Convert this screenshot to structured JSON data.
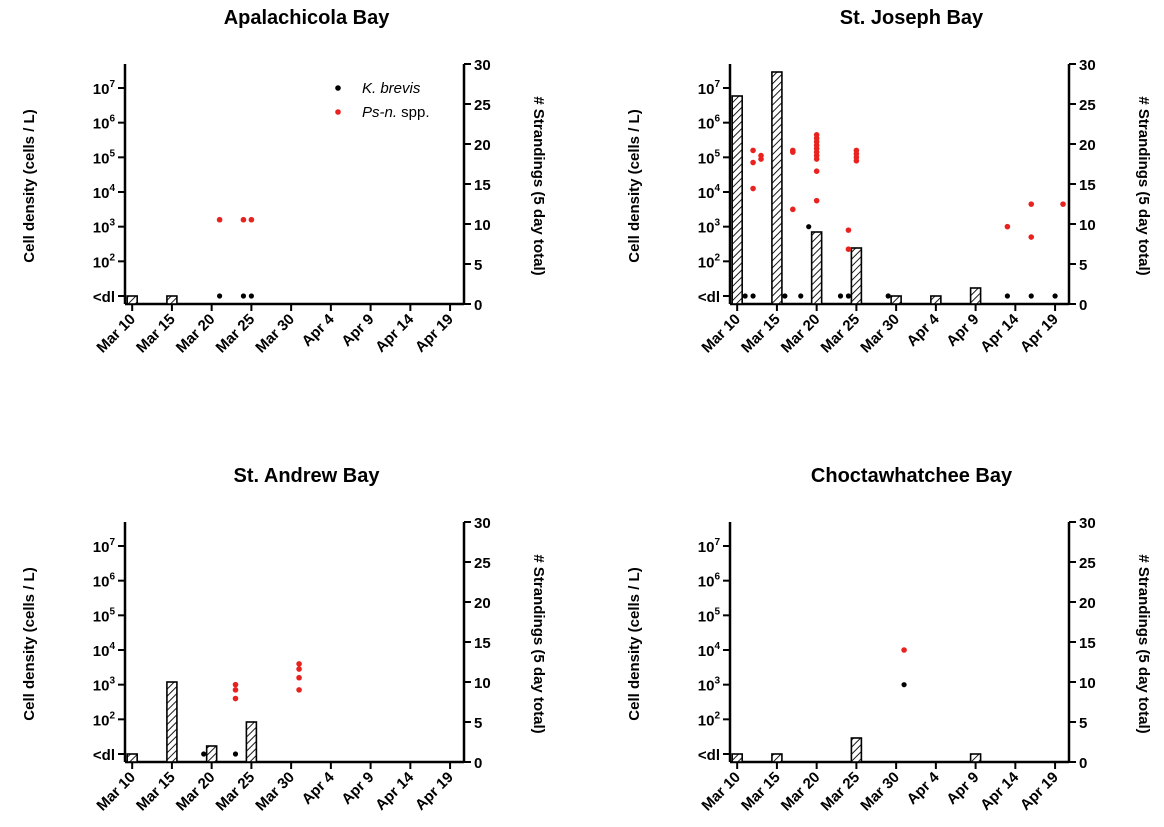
{
  "chart_data": [
    {
      "type": "bar+scatter",
      "title": "Apalachicola Bay",
      "ylabel_left": "Cell density (cells / L)",
      "ylabel_right": "# Strandings (5 day total)",
      "x_ticks": [
        "Mar 10",
        "Mar 15",
        "Mar 20",
        "Mar 25",
        "Mar 30",
        "Apr 4",
        "Apr 9",
        "Apr 14",
        "Apr 19"
      ],
      "y_left_ticks": [
        {
          "label": "<dl",
          "exp": null
        },
        {
          "label": "10",
          "exp": "2"
        },
        {
          "label": "10",
          "exp": "3"
        },
        {
          "label": "10",
          "exp": "4"
        },
        {
          "label": "10",
          "exp": "5"
        },
        {
          "label": "10",
          "exp": "6"
        },
        {
          "label": "10",
          "exp": "7"
        }
      ],
      "y_right_ticks": [
        "0",
        "5",
        "10",
        "15",
        "20",
        "25",
        "30"
      ],
      "y_right_range": [
        0,
        30
      ],
      "legend": {
        "placement": "top-right",
        "entries": [
          {
            "name": "K. brevis",
            "prefix_italic": "K. brevis",
            "suffix": "",
            "color": "#000000"
          },
          {
            "name": "Ps-n. spp.",
            "prefix_italic": "Ps-n.",
            "suffix": " spp.",
            "color": "#e8231f"
          }
        ]
      },
      "bars": [
        {
          "day": 10,
          "value": 1
        },
        {
          "day": 15,
          "value": 1
        }
      ],
      "kbrevis": [
        {
          "day": 21,
          "log": 1
        },
        {
          "day": 24,
          "log": 1
        },
        {
          "day": 25,
          "log": 1
        }
      ],
      "psn": [
        {
          "day": 21,
          "log": 3.2
        },
        {
          "day": 24,
          "log": 3.2
        },
        {
          "day": 25,
          "log": 3.2
        }
      ]
    },
    {
      "type": "bar+scatter",
      "title": "St. Joseph Bay",
      "ylabel_left": "Cell density (cells / L)",
      "ylabel_right": "# Strandings (5 day total)",
      "x_ticks": [
        "Mar 10",
        "Mar 15",
        "Mar 20",
        "Mar 25",
        "Mar 30",
        "Apr 4",
        "Apr 9",
        "Apr 14",
        "Apr 19"
      ],
      "y_left_ticks": [
        {
          "label": "<dl",
          "exp": null
        },
        {
          "label": "10",
          "exp": "2"
        },
        {
          "label": "10",
          "exp": "3"
        },
        {
          "label": "10",
          "exp": "4"
        },
        {
          "label": "10",
          "exp": "5"
        },
        {
          "label": "10",
          "exp": "6"
        },
        {
          "label": "10",
          "exp": "7"
        }
      ],
      "y_right_ticks": [
        "0",
        "5",
        "10",
        "15",
        "20",
        "25",
        "30"
      ],
      "y_right_range": [
        0,
        30
      ],
      "bars": [
        {
          "day": 10,
          "value": 26
        },
        {
          "day": 15,
          "value": 29
        },
        {
          "day": 20,
          "value": 9
        },
        {
          "day": 25,
          "value": 7
        },
        {
          "day": 30,
          "value": 1
        },
        {
          "day": 35,
          "value": 1
        },
        {
          "day": 40,
          "value": 2
        }
      ],
      "kbrevis": [
        {
          "day": 11,
          "log": 1
        },
        {
          "day": 12,
          "log": 1
        },
        {
          "day": 16,
          "log": 1
        },
        {
          "day": 18,
          "log": 1
        },
        {
          "day": 19,
          "log": 3
        },
        {
          "day": 23,
          "log": 1
        },
        {
          "day": 24,
          "log": 1
        },
        {
          "day": 29,
          "log": 1
        },
        {
          "day": 44,
          "log": 1
        },
        {
          "day": 47,
          "log": 1
        },
        {
          "day": 50,
          "log": 1
        }
      ],
      "psn": [
        {
          "day": 12,
          "log": 4.1
        },
        {
          "day": 12,
          "log": 4.85
        },
        {
          "day": 12,
          "log": 5.2
        },
        {
          "day": 13,
          "log": 4.95
        },
        {
          "day": 13,
          "log": 5.05
        },
        {
          "day": 17,
          "log": 3.5
        },
        {
          "day": 17,
          "log": 5.15
        },
        {
          "day": 17,
          "log": 5.2
        },
        {
          "day": 20,
          "log": 3.75
        },
        {
          "day": 20,
          "log": 4.6
        },
        {
          "day": 20,
          "log": 4.95
        },
        {
          "day": 20,
          "log": 5.05
        },
        {
          "day": 20,
          "log": 5.15
        },
        {
          "day": 20,
          "log": 5.25
        },
        {
          "day": 20,
          "log": 5.35
        },
        {
          "day": 20,
          "log": 5.45
        },
        {
          "day": 20,
          "log": 5.55
        },
        {
          "day": 20,
          "log": 5.65
        },
        {
          "day": 24,
          "log": 2.9
        },
        {
          "day": 24,
          "log": 2.35
        },
        {
          "day": 25,
          "log": 4.9
        },
        {
          "day": 25,
          "log": 5.0
        },
        {
          "day": 25,
          "log": 5.1
        },
        {
          "day": 25,
          "log": 5.2
        },
        {
          "day": 44,
          "log": 3.0
        },
        {
          "day": 47,
          "log": 2.7
        },
        {
          "day": 47,
          "log": 3.65
        },
        {
          "day": 51,
          "log": 3.65
        }
      ]
    },
    {
      "type": "bar+scatter",
      "title": "St. Andrew Bay",
      "ylabel_left": "Cell density (cells / L)",
      "ylabel_right": "# Strandings (5 day total)",
      "x_ticks": [
        "Mar 10",
        "Mar 15",
        "Mar 20",
        "Mar 25",
        "Mar 30",
        "Apr 4",
        "Apr 9",
        "Apr 14",
        "Apr 19"
      ],
      "y_left_ticks": [
        {
          "label": "<dl",
          "exp": null
        },
        {
          "label": "10",
          "exp": "2"
        },
        {
          "label": "10",
          "exp": "3"
        },
        {
          "label": "10",
          "exp": "4"
        },
        {
          "label": "10",
          "exp": "5"
        },
        {
          "label": "10",
          "exp": "6"
        },
        {
          "label": "10",
          "exp": "7"
        }
      ],
      "y_right_ticks": [
        "0",
        "5",
        "10",
        "15",
        "20",
        "25",
        "30"
      ],
      "y_right_range": [
        0,
        30
      ],
      "bars": [
        {
          "day": 10,
          "value": 1
        },
        {
          "day": 15,
          "value": 10
        },
        {
          "day": 20,
          "value": 2
        },
        {
          "day": 25,
          "value": 5
        }
      ],
      "kbrevis": [
        {
          "day": 19,
          "log": 1
        },
        {
          "day": 23,
          "log": 1
        }
      ],
      "psn": [
        {
          "day": 23,
          "log": 2.6
        },
        {
          "day": 23,
          "log": 2.85
        },
        {
          "day": 23,
          "log": 3.0
        },
        {
          "day": 31,
          "log": 2.85
        },
        {
          "day": 31,
          "log": 3.2
        },
        {
          "day": 31,
          "log": 3.45
        },
        {
          "day": 31,
          "log": 3.6
        }
      ]
    },
    {
      "type": "bar+scatter",
      "title": "Choctawhatchee Bay",
      "ylabel_left": "Cell density (cells / L)",
      "ylabel_right": "# Strandings (5 day total)",
      "x_ticks": [
        "Mar 10",
        "Mar 15",
        "Mar 20",
        "Mar 25",
        "Mar 30",
        "Apr 4",
        "Apr 9",
        "Apr 14",
        "Apr 19"
      ],
      "y_left_ticks": [
        {
          "label": "<dl",
          "exp": null
        },
        {
          "label": "10",
          "exp": "2"
        },
        {
          "label": "10",
          "exp": "3"
        },
        {
          "label": "10",
          "exp": "4"
        },
        {
          "label": "10",
          "exp": "5"
        },
        {
          "label": "10",
          "exp": "6"
        },
        {
          "label": "10",
          "exp": "7"
        }
      ],
      "y_right_ticks": [
        "0",
        "5",
        "10",
        "15",
        "20",
        "25",
        "30"
      ],
      "y_right_range": [
        0,
        30
      ],
      "bars": [
        {
          "day": 10,
          "value": 1
        },
        {
          "day": 15,
          "value": 1
        },
        {
          "day": 25,
          "value": 3
        },
        {
          "day": 40,
          "value": 1
        }
      ],
      "kbrevis": [
        {
          "day": 31,
          "log": 3
        }
      ],
      "psn": [
        {
          "day": 31,
          "log": 4
        }
      ]
    }
  ],
  "colors": {
    "kbrevis": "#000000",
    "psn": "#e8231f",
    "bar_outline": "#000000",
    "hatch": "#000000"
  }
}
